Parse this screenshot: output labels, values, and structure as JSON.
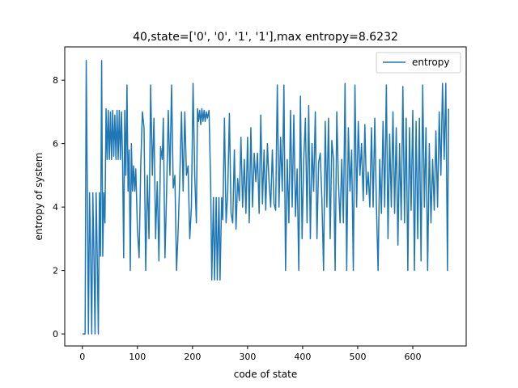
{
  "chart_data": {
    "type": "line",
    "title": "40,state=['0', '0', '1', '1'],max entropy=8.6232",
    "xlabel": "code of state",
    "ylabel": "entropy of system",
    "xlim": [
      -32,
      697
    ],
    "ylim": [
      -0.38,
      9.05
    ],
    "xticks": [
      0,
      100,
      200,
      300,
      400,
      500,
      600
    ],
    "yticks": [
      0,
      2,
      4,
      6,
      8
    ],
    "grid": false,
    "legend": {
      "position": "top-right",
      "entries": [
        "entropy"
      ]
    },
    "series": [
      {
        "name": "entropy",
        "color": "#1f77b4",
        "x_start": 0,
        "x_end": 665,
        "y_keyframes": [
          [
            0,
            0
          ],
          [
            5,
            0
          ],
          [
            7,
            8.62
          ],
          [
            9,
            4.45
          ],
          [
            11,
            0
          ],
          [
            13,
            4.45
          ],
          [
            15,
            2.45
          ],
          [
            17,
            0
          ],
          [
            19,
            4.45
          ],
          [
            21,
            2.45
          ],
          [
            23,
            0
          ],
          [
            25,
            4.45
          ],
          [
            27,
            2.45
          ],
          [
            29,
            0
          ],
          [
            31,
            4.45
          ],
          [
            33,
            2.45
          ],
          [
            35,
            8.62
          ],
          [
            37,
            2.45
          ],
          [
            39,
            4.45
          ],
          [
            41,
            3.5
          ],
          [
            43,
            7.1
          ],
          [
            45,
            5.5
          ],
          [
            47,
            7.05
          ],
          [
            49,
            5.5
          ],
          [
            51,
            7.0
          ],
          [
            53,
            5.5
          ],
          [
            55,
            7.05
          ],
          [
            57,
            5.6
          ],
          [
            59,
            6.9
          ],
          [
            61,
            5.5
          ],
          [
            63,
            7.05
          ],
          [
            65,
            5.5
          ],
          [
            67,
            7.05
          ],
          [
            69,
            5.5
          ],
          [
            71,
            7.0
          ],
          [
            73,
            5.5
          ],
          [
            75,
            2.4
          ],
          [
            77,
            7.05
          ],
          [
            79,
            5.0
          ],
          [
            81,
            7.85
          ],
          [
            83,
            4.5
          ],
          [
            85,
            5.8
          ],
          [
            87,
            2.0
          ],
          [
            89,
            6.0
          ],
          [
            91,
            4.5
          ],
          [
            93,
            5.3
          ],
          [
            95,
            4.5
          ],
          [
            97,
            5.2
          ],
          [
            100,
            3.3
          ],
          [
            103,
            2.4
          ],
          [
            106,
            5.3
          ],
          [
            109,
            7.0
          ],
          [
            112,
            6.5
          ],
          [
            115,
            2.0
          ],
          [
            118,
            5.0
          ],
          [
            121,
            3.0
          ],
          [
            124,
            7.85
          ],
          [
            127,
            5.0
          ],
          [
            130,
            6.8
          ],
          [
            133,
            3.0
          ],
          [
            136,
            4.8
          ],
          [
            139,
            2.3
          ],
          [
            142,
            5.9
          ],
          [
            145,
            5.5
          ],
          [
            147,
            6.8
          ],
          [
            150,
            2.4
          ],
          [
            153,
            4.5
          ],
          [
            156,
            7.05
          ],
          [
            159,
            5.0
          ],
          [
            162,
            7.85
          ],
          [
            165,
            4.6
          ],
          [
            168,
            5.0
          ],
          [
            171,
            2.0
          ],
          [
            174,
            3.3
          ],
          [
            177,
            5.0
          ],
          [
            180,
            7.0
          ],
          [
            183,
            4.5
          ],
          [
            186,
            7.0
          ],
          [
            189,
            5.0
          ],
          [
            192,
            5.3
          ],
          [
            195,
            3.0
          ],
          [
            198,
            4.0
          ],
          [
            201,
            7.9
          ],
          [
            204,
            5.0
          ],
          [
            207,
            3.5
          ],
          [
            209,
            7.1
          ],
          [
            211,
            6.7
          ],
          [
            213,
            7.05
          ],
          [
            215,
            6.6
          ],
          [
            217,
            7.1
          ],
          [
            219,
            6.7
          ],
          [
            221,
            7.05
          ],
          [
            223,
            6.7
          ],
          [
            225,
            7.0
          ],
          [
            227,
            6.8
          ],
          [
            230,
            7.05
          ],
          [
            233,
            4.7
          ],
          [
            235,
            1.7
          ],
          [
            238,
            4.3
          ],
          [
            240,
            1.7
          ],
          [
            243,
            4.3
          ],
          [
            245,
            1.7
          ],
          [
            248,
            4.3
          ],
          [
            250,
            1.7
          ],
          [
            253,
            4.3
          ],
          [
            255,
            3.6
          ],
          [
            258,
            6.8
          ],
          [
            261,
            3.5
          ],
          [
            264,
            4.5
          ],
          [
            267,
            6.95
          ],
          [
            270,
            3.8
          ],
          [
            273,
            3.5
          ],
          [
            276,
            5.8
          ],
          [
            279,
            3.3
          ],
          [
            282,
            4.9
          ],
          [
            285,
            4.2
          ],
          [
            288,
            6.2
          ],
          [
            291,
            4.0
          ],
          [
            294,
            5.5
          ],
          [
            297,
            3.8
          ],
          [
            300,
            6.2
          ],
          [
            303,
            3.5
          ],
          [
            306,
            6.5
          ],
          [
            309,
            4.0
          ],
          [
            312,
            5.7
          ],
          [
            315,
            4.8
          ],
          [
            318,
            5.7
          ],
          [
            321,
            3.8
          ],
          [
            324,
            6.9
          ],
          [
            327,
            4.1
          ],
          [
            330,
            5.8
          ],
          [
            333,
            3.9
          ],
          [
            336,
            6.0
          ],
          [
            339,
            4.8
          ],
          [
            342,
            4.0
          ],
          [
            345,
            5.8
          ],
          [
            348,
            4.1
          ],
          [
            351,
            3.9
          ],
          [
            354,
            7.85
          ],
          [
            357,
            4.0
          ],
          [
            360,
            6.2
          ],
          [
            363,
            4.5
          ],
          [
            366,
            7.85
          ],
          [
            369,
            2.0
          ],
          [
            372,
            5.5
          ],
          [
            375,
            3.5
          ],
          [
            378,
            7.05
          ],
          [
            381,
            4.0
          ],
          [
            384,
            6.9
          ],
          [
            387,
            3.7
          ],
          [
            390,
            5.2
          ],
          [
            393,
            2.0
          ],
          [
            396,
            7.5
          ],
          [
            399,
            3.0
          ],
          [
            402,
            5.5
          ],
          [
            405,
            6.8
          ],
          [
            408,
            3.5
          ],
          [
            411,
            7.2
          ],
          [
            414,
            3.0
          ],
          [
            417,
            6.0
          ],
          [
            420,
            4.5
          ],
          [
            423,
            7.0
          ],
          [
            426,
            3.0
          ],
          [
            429,
            5.4
          ],
          [
            432,
            5.7
          ],
          [
            435,
            4.2
          ],
          [
            438,
            2.0
          ],
          [
            441,
            6.7
          ],
          [
            444,
            4.0
          ],
          [
            447,
            6.8
          ],
          [
            450,
            3.0
          ],
          [
            453,
            6.1
          ],
          [
            456,
            5.5
          ],
          [
            459,
            2.0
          ],
          [
            462,
            7.0
          ],
          [
            465,
            4.8
          ],
          [
            468,
            3.5
          ],
          [
            471,
            5.5
          ],
          [
            474,
            3.5
          ],
          [
            477,
            7.9
          ],
          [
            480,
            2.0
          ],
          [
            483,
            6.5
          ],
          [
            486,
            4.5
          ],
          [
            489,
            5.8
          ],
          [
            492,
            2.0
          ],
          [
            495,
            7.85
          ],
          [
            498,
            4.0
          ],
          [
            501,
            6.7
          ],
          [
            504,
            5.0
          ],
          [
            507,
            6.0
          ],
          [
            510,
            4.2
          ],
          [
            513,
            6.6
          ],
          [
            516,
            4.4
          ],
          [
            519,
            5.1
          ],
          [
            522,
            4.0
          ],
          [
            525,
            6.5
          ],
          [
            528,
            4.0
          ],
          [
            531,
            6.8
          ],
          [
            534,
            4.0
          ],
          [
            537,
            2.0
          ],
          [
            540,
            5.5
          ],
          [
            543,
            3.8
          ],
          [
            546,
            6.7
          ],
          [
            549,
            4.0
          ],
          [
            552,
            7.85
          ],
          [
            555,
            3.0
          ],
          [
            558,
            6.3
          ],
          [
            561,
            4.0
          ],
          [
            564,
            7.0
          ],
          [
            567,
            3.8
          ],
          [
            570,
            6.5
          ],
          [
            573,
            2.8
          ],
          [
            576,
            6.0
          ],
          [
            579,
            3.6
          ],
          [
            582,
            7.8
          ],
          [
            585,
            3.5
          ],
          [
            588,
            6.8
          ],
          [
            591,
            2.0
          ],
          [
            594,
            6.5
          ],
          [
            597,
            3.9
          ],
          [
            600,
            7.05
          ],
          [
            603,
            2.0
          ],
          [
            606,
            6.7
          ],
          [
            609,
            3.0
          ],
          [
            612,
            6.8
          ],
          [
            615,
            2.3
          ],
          [
            618,
            7.85
          ],
          [
            621,
            4.0
          ],
          [
            624,
            6.5
          ],
          [
            627,
            2.0
          ],
          [
            630,
            6.0
          ],
          [
            633,
            3.5
          ],
          [
            636,
            5.5
          ],
          [
            639,
            3.9
          ],
          [
            642,
            6.4
          ],
          [
            645,
            4.0
          ],
          [
            648,
            7.0
          ],
          [
            651,
            5.0
          ],
          [
            654,
            7.9
          ],
          [
            657,
            5.5
          ],
          [
            660,
            7.9
          ],
          [
            663,
            2.0
          ],
          [
            665,
            7.1
          ]
        ]
      }
    ]
  }
}
